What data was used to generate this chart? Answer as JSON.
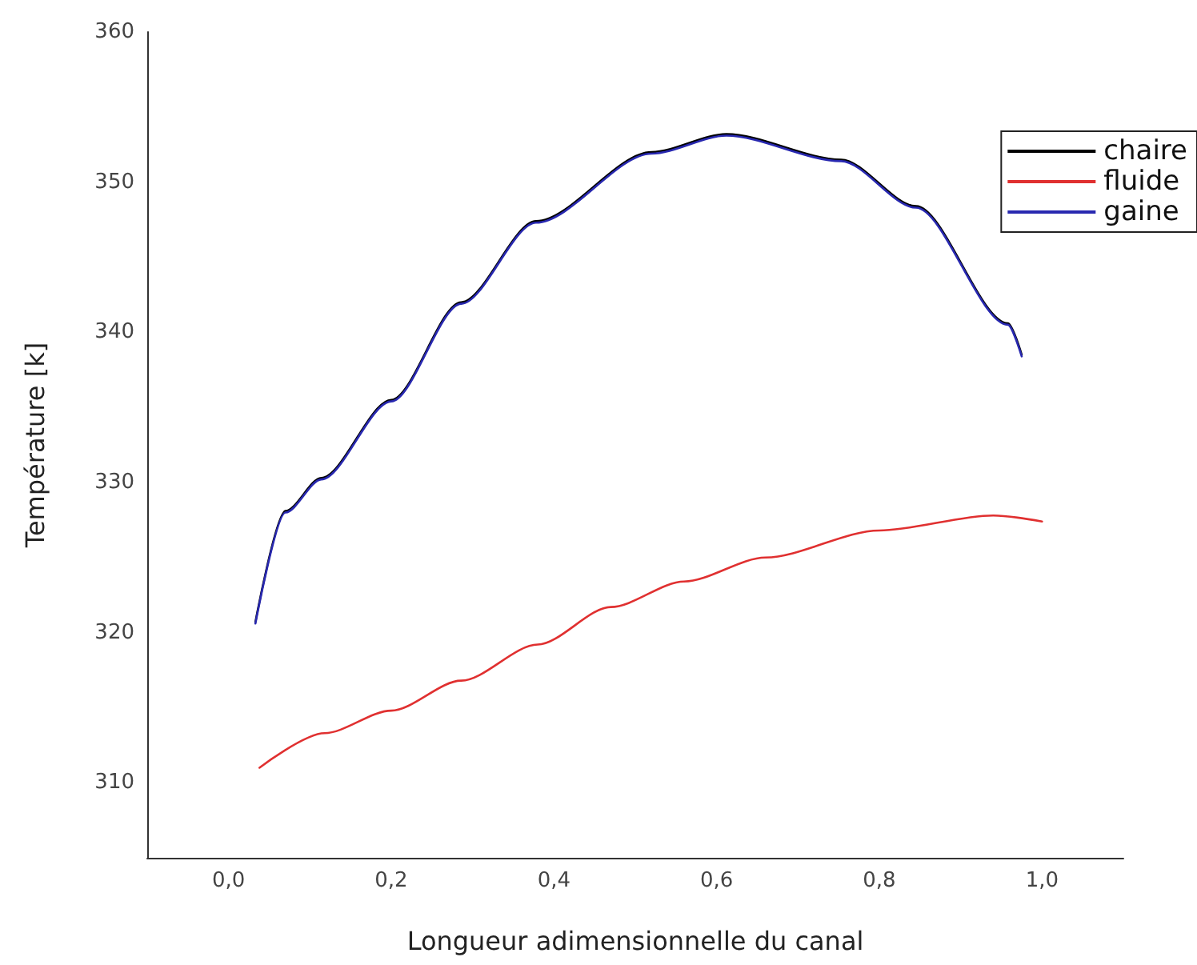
{
  "chart_data": {
    "type": "line",
    "xlabel": "Longueur adimensionnelle du canal",
    "ylabel": "Température [k]",
    "xlim": [
      -0.1,
      1.1
    ],
    "xticks": [
      {
        "value": 0,
        "label": "0,0"
      },
      {
        "value": 0.2,
        "label": "0,2"
      },
      {
        "value": 0.4,
        "label": "0,4"
      },
      {
        "value": 0.6,
        "label": "0,6"
      },
      {
        "value": 0.8,
        "label": "0,8"
      },
      {
        "value": 1,
        "label": "1,0"
      }
    ],
    "ylim": [
      305,
      360
    ],
    "yticks": [
      310,
      320,
      330,
      340,
      350,
      360
    ],
    "grid": false,
    "legend": "top right",
    "marker": "none",
    "line_style": "solid",
    "series": [
      {
        "name": "chaire",
        "color": "#000000",
        "x": [
          0.033,
          0.07,
          0.114,
          0.2,
          0.286,
          0.378,
          0.52,
          0.612,
          0.753,
          0.845,
          0.958,
          0.975
        ],
        "values": [
          320.7,
          328.1,
          330.3,
          335.5,
          342,
          347.4,
          352,
          353.2,
          351.5,
          348.4,
          340.6,
          338.5
        ]
      },
      {
        "name": "fluide",
        "color": "#e03030",
        "x": [
          0.038,
          0.118,
          0.2,
          0.286,
          0.38,
          0.47,
          0.56,
          0.66,
          0.8,
          0.94,
          1.0
        ],
        "values": [
          311,
          313.3,
          314.8,
          316.8,
          319.2,
          321.7,
          323.4,
          325,
          326.8,
          327.8,
          327.4
        ]
      },
      {
        "name": "gaine",
        "color": "#2828b0",
        "x": [
          0.033,
          0.07,
          0.114,
          0.2,
          0.286,
          0.378,
          0.52,
          0.612,
          0.753,
          0.845,
          0.958,
          0.975
        ],
        "values": [
          320.6,
          328,
          330.2,
          335.4,
          341.9,
          347.3,
          351.9,
          353.1,
          351.4,
          348.3,
          340.5,
          338.4
        ]
      }
    ]
  }
}
